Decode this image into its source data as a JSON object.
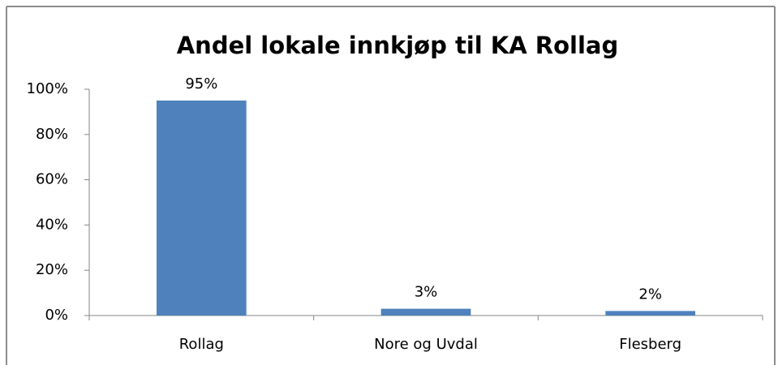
{
  "chart_data": {
    "type": "bar",
    "title": "Andel lokale innkjøp til KA Rollag",
    "categories": [
      "Rollag",
      "Nore og Uvdal",
      "Flesberg"
    ],
    "values": [
      95,
      3,
      2
    ],
    "value_labels": [
      "95%",
      "3%",
      "2%"
    ],
    "color": "#4f81bd",
    "ylim": [
      0,
      100
    ],
    "yticks": [
      {
        "value": 0,
        "label": "0%"
      },
      {
        "value": 20,
        "label": "20%"
      },
      {
        "value": 40,
        "label": "40%"
      },
      {
        "value": 60,
        "label": "60%"
      },
      {
        "value": 80,
        "label": "80%"
      },
      {
        "value": 100,
        "label": "100%"
      }
    ],
    "grid": false
  }
}
